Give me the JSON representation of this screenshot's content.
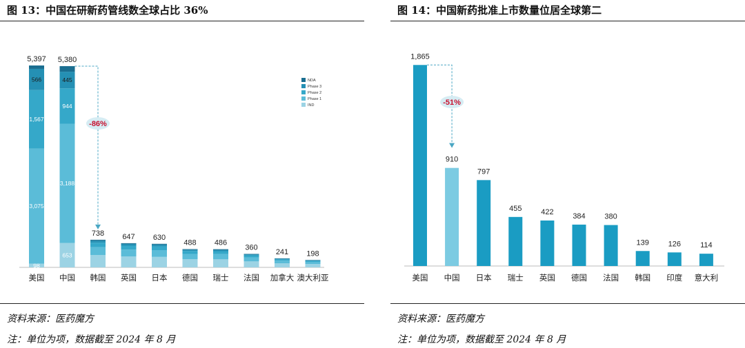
{
  "notes": {
    "source": "资料来源：医药魔方",
    "unit": "注：单位为项，数据截至 2024 年 8 月"
  },
  "chart_data": [
    {
      "type": "bar",
      "title": "图 13：中国在研新药管线数全球占比 36%",
      "stacked": true,
      "categories": [
        "美国",
        "中国",
        "韩国",
        "英国",
        "日本",
        "德国",
        "瑞士",
        "法国",
        "加拿大",
        "澳大利亚"
      ],
      "totals": [
        5397,
        5380,
        738,
        647,
        630,
        488,
        486,
        360,
        241,
        198
      ],
      "series": [
        {
          "name": "IND",
          "color": "#9cd3e4",
          "values": [
            98,
            653,
            330,
            290,
            280,
            220,
            215,
            160,
            110,
            90
          ]
        },
        {
          "name": "Phase 1",
          "color": "#5bbcd8",
          "values": [
            3075,
            3188,
            210,
            185,
            180,
            140,
            140,
            105,
            70,
            57
          ]
        },
        {
          "name": "Phase 2",
          "color": "#35a8c9",
          "values": [
            1567,
            944,
            120,
            105,
            100,
            78,
            78,
            58,
            38,
            31
          ]
        },
        {
          "name": "Phase 3",
          "color": "#2590b4",
          "values": [
            566,
            445,
            55,
            48,
            50,
            35,
            35,
            25,
            16,
            13
          ]
        },
        {
          "name": "NDA",
          "color": "#1a6e90",
          "values": [
            91,
            150,
            23,
            19,
            20,
            15,
            18,
            12,
            7,
            7
          ]
        }
      ],
      "segment_labels": {
        "美国": {
          "IND": "98",
          "Phase 1": "3,075",
          "Phase 2": "1,567",
          "Phase 3": "566"
        },
        "中国": {
          "IND": "653",
          "Phase 1": "3,188",
          "Phase 2": "944",
          "Phase 3": "445"
        }
      },
      "total_labels": [
        "5,397",
        "5,380",
        "738",
        "647",
        "630",
        "488",
        "486",
        "360",
        "241",
        "198"
      ],
      "legend_order": [
        "NDA",
        "Phase 3",
        "Phase 2",
        "Phase 1",
        "IND"
      ],
      "legend_position": "top-right",
      "annotation": {
        "text": "-86%",
        "from": "中国",
        "to": "韩国"
      },
      "ylim": [
        0,
        5600
      ],
      "grid": false
    },
    {
      "type": "bar",
      "title": "图 14：中国新药批准上市数量位居全球第二",
      "categories": [
        "美国",
        "中国",
        "日本",
        "瑞士",
        "英国",
        "德国",
        "法国",
        "韩国",
        "印度",
        "意大利"
      ],
      "values": [
        1865,
        910,
        797,
        455,
        422,
        384,
        380,
        139,
        126,
        114
      ],
      "value_labels": [
        "1,865",
        "910",
        "797",
        "455",
        "422",
        "384",
        "380",
        "139",
        "126",
        "114"
      ],
      "colors": [
        "#1a9cc3",
        "#7ccbe2",
        "#1a9cc3",
        "#1a9cc3",
        "#1a9cc3",
        "#1a9cc3",
        "#1a9cc3",
        "#1a9cc3",
        "#1a9cc3",
        "#1a9cc3"
      ],
      "annotation": {
        "text": "-51%",
        "from": "美国",
        "to": "中国"
      },
      "ylim": [
        0,
        1950
      ],
      "grid": false
    }
  ]
}
